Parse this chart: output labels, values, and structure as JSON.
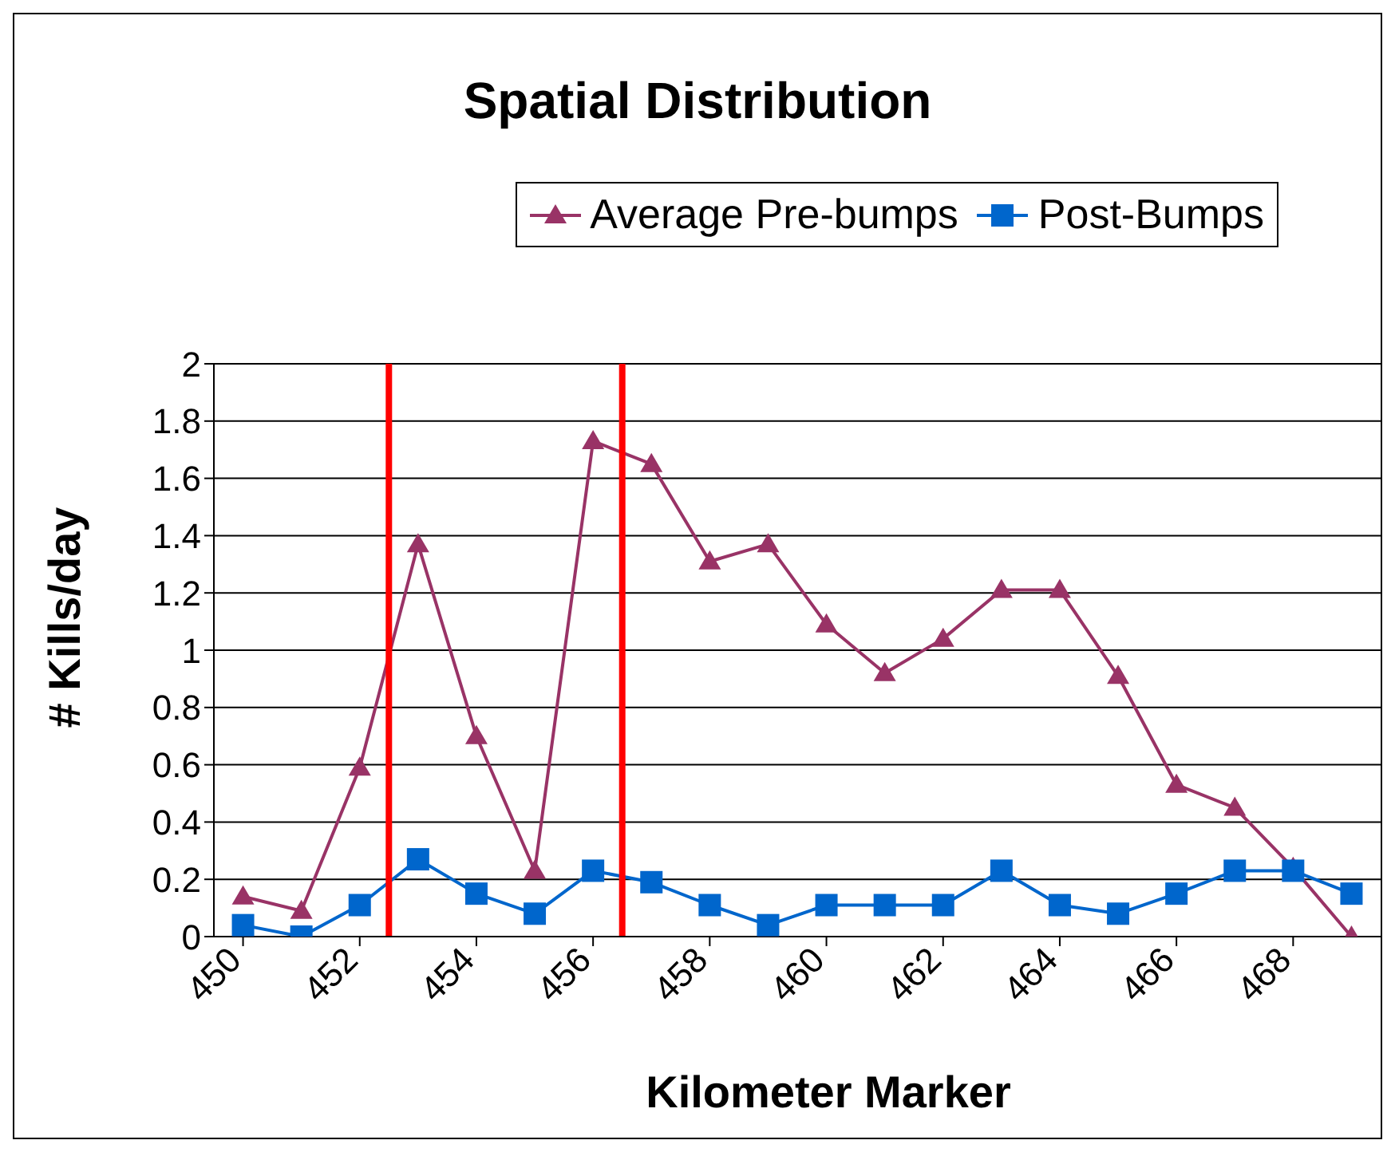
{
  "chart_data": {
    "type": "line",
    "title": "Spatial Distribution",
    "xlabel": "Kilometer Marker",
    "ylabel": "# Kills/day",
    "x": [
      450,
      451,
      452,
      453,
      454,
      455,
      456,
      457,
      458,
      459,
      460,
      461,
      462,
      463,
      464,
      465,
      466,
      467,
      468,
      469
    ],
    "series": [
      {
        "name": "Average Pre-bumps",
        "color": "#993366",
        "marker": "triangle",
        "values": [
          0.14,
          0.09,
          0.59,
          1.37,
          0.7,
          0.23,
          1.73,
          1.65,
          1.31,
          1.37,
          1.09,
          0.92,
          1.04,
          1.21,
          1.21,
          0.91,
          0.53,
          0.45,
          0.24,
          0
        ]
      },
      {
        "name": "Post-Bumps",
        "color": "#0066cc",
        "marker": "square",
        "values": [
          0.04,
          0,
          0.11,
          0.27,
          0.15,
          0.08,
          0.23,
          0.19,
          0.11,
          0.04,
          0.11,
          0.11,
          0.11,
          0.23,
          0.11,
          0.08,
          0.15,
          0.23,
          0.23,
          0.15
        ]
      }
    ],
    "xlim": [
      449.5,
      469.5
    ],
    "xticks": [
      450,
      452,
      454,
      456,
      458,
      460,
      462,
      464,
      466,
      468
    ],
    "ylim": [
      0,
      2
    ],
    "yticks": [
      0,
      0.2,
      0.4,
      0.6,
      0.8,
      1,
      1.2,
      1.4,
      1.6,
      1.8,
      2
    ],
    "ref_lines": [
      {
        "axis": "x",
        "value": 452.5,
        "color": "#ff0000"
      },
      {
        "axis": "x",
        "value": 456.5,
        "color": "#ff0000"
      }
    ],
    "grid": "y",
    "legend": "top right"
  }
}
